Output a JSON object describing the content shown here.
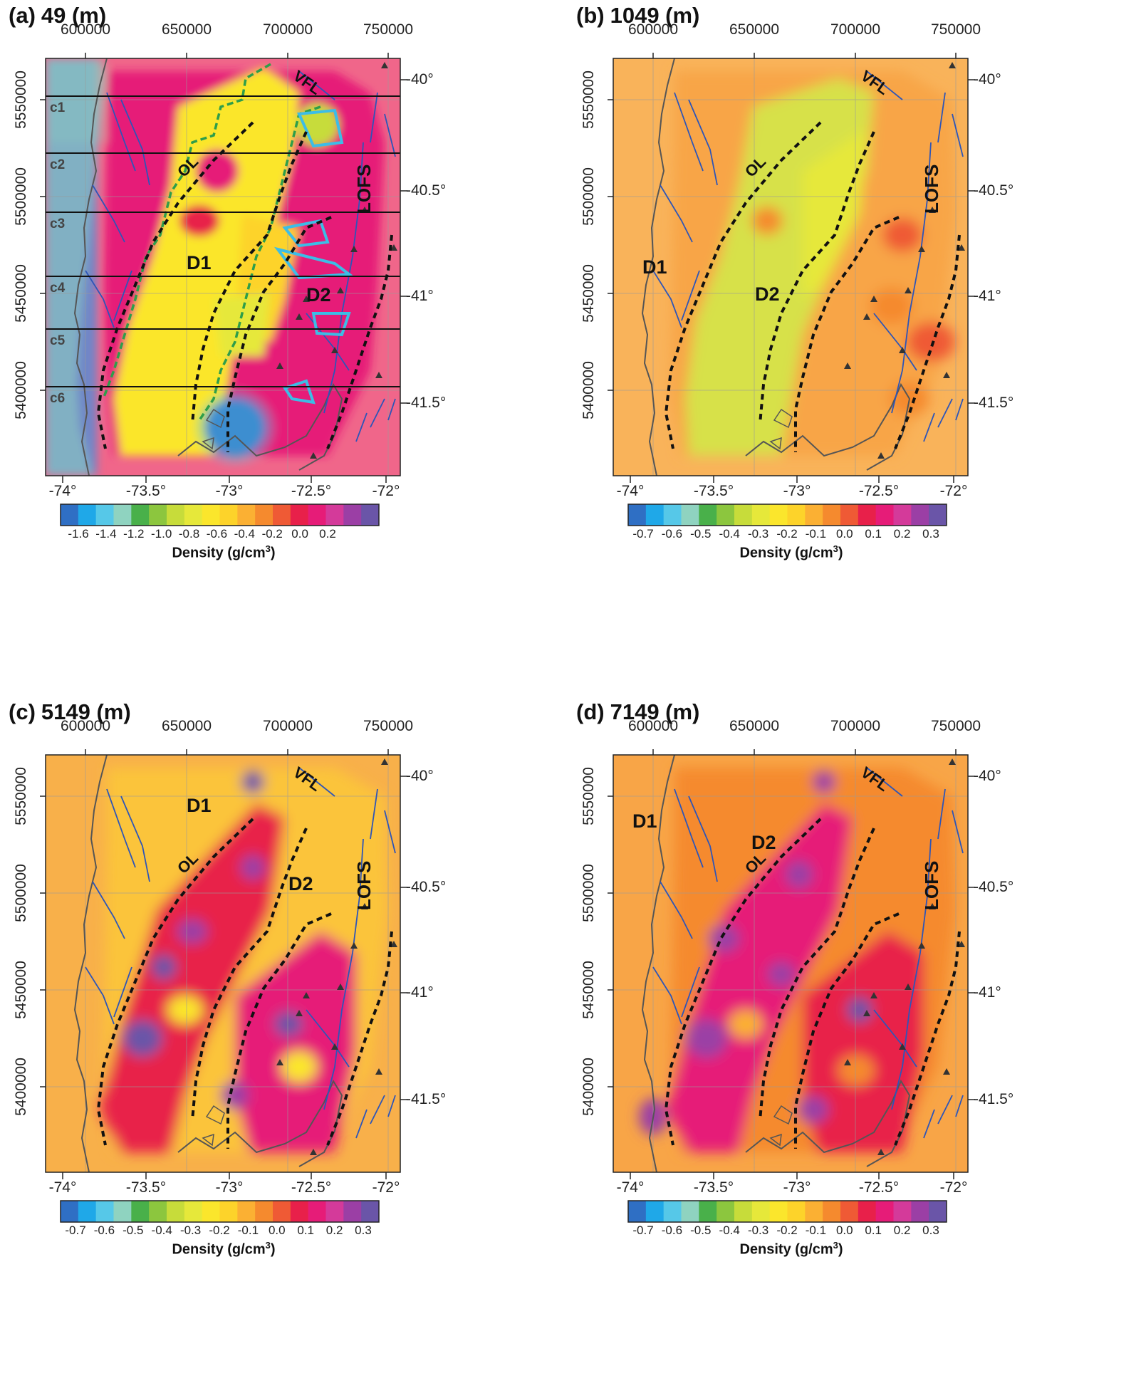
{
  "figure": {
    "panels": [
      {
        "label": "(a)",
        "depth": "49 (m)",
        "colorbar": {
          "title": "Density (g/cm",
          "title_sup": "3",
          "title_end": ")",
          "ticks": [
            "-1.6",
            "-1.4",
            "-1.2",
            "-1.0",
            "-0.8",
            "-0.6",
            "-0.4",
            "-0.2",
            "0.0",
            "0.2"
          ]
        },
        "labels": {
          "ol": "OL",
          "vfl": "VFL",
          "lofs": "LOFS",
          "d1": "D1",
          "d2": "D2"
        },
        "profiles": [
          "c1",
          "c2",
          "c3",
          "c4",
          "c5",
          "c6"
        ],
        "palette": "near-surface"
      },
      {
        "label": "(b)",
        "depth": "1049 (m)",
        "colorbar": {
          "title": "Density (g/cm",
          "title_sup": "3",
          "title_end": ")",
          "ticks": [
            "-0.7",
            "-0.6",
            "-0.5",
            "-0.4",
            "-0.3",
            "-0.2",
            "-0.1",
            "0.0",
            "0.1",
            "0.2",
            "0.3"
          ]
        },
        "labels": {
          "ol": "OL",
          "vfl": "VFL",
          "lofs": "LOFS",
          "d1": "D1",
          "d2": "D2"
        },
        "profiles": [],
        "palette": "pale"
      },
      {
        "label": "(c)",
        "depth": "5149 (m)",
        "colorbar": {
          "title": "Density (g/cm",
          "title_sup": "3",
          "title_end": ")",
          "ticks": [
            "-0.7",
            "-0.6",
            "-0.5",
            "-0.4",
            "-0.3",
            "-0.2",
            "-0.1",
            "0.0",
            "0.1",
            "0.2",
            "0.3"
          ]
        },
        "labels": {
          "ol": "OL",
          "vfl": "VFL",
          "lofs": "LOFS",
          "d1": "D1",
          "d2": "D2"
        },
        "profiles": [],
        "palette": "deep-yellow"
      },
      {
        "label": "(d)",
        "depth": "7149 (m)",
        "colorbar": {
          "title": "Density (g/cm",
          "title_sup": "3",
          "title_end": ")",
          "ticks": [
            "-0.7",
            "-0.6",
            "-0.5",
            "-0.4",
            "-0.3",
            "-0.2",
            "-0.1",
            "0.0",
            "0.1",
            "0.2",
            "0.3"
          ]
        },
        "labels": {
          "ol": "OL",
          "vfl": "VFL",
          "lofs": "LOFS",
          "d1": "D1",
          "d2": "D2"
        },
        "profiles": [],
        "palette": "deep-orange"
      }
    ],
    "axes": {
      "utm_easting": [
        "600000",
        "650000",
        "700000",
        "750000"
      ],
      "utm_northing": [
        "5550000",
        "5500000",
        "5450000",
        "5400000"
      ],
      "latitude": [
        "-40°",
        "-40.5°",
        "-41°",
        "-41.5°"
      ],
      "longitude": [
        "-74°",
        "-73.5°",
        "-73°",
        "-72.5°",
        "-72°"
      ]
    },
    "colormap": [
      "#2f6fc4",
      "#1fa8e8",
      "#56c8e8",
      "#8fd3c0",
      "#49b04a",
      "#8cc63e",
      "#c7dc3a",
      "#e6e83a",
      "#fbe62c",
      "#fdd32a",
      "#fbb033",
      "#f58a2e",
      "#ef5a35",
      "#e8204a",
      "#e61c78",
      "#d43a9a",
      "#9b3fa5",
      "#6a55a8"
    ]
  }
}
